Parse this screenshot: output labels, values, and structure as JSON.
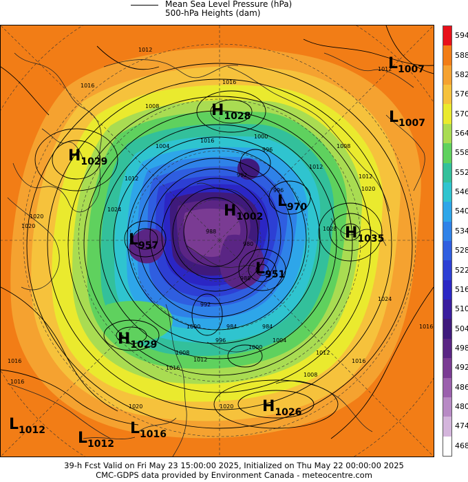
{
  "legend": {
    "line1": "Mean Sea Level Pressure (hPa)",
    "line2": "500-hPa Heights (dam)"
  },
  "colorbar": {
    "levels": [
      "594",
      "588",
      "582",
      "576",
      "570",
      "564",
      "558",
      "552",
      "546",
      "540",
      "534",
      "528",
      "522",
      "516",
      "510",
      "504",
      "498",
      "492",
      "486",
      "480",
      "474",
      "468"
    ],
    "colors": [
      "#e8101a",
      "#f27d16",
      "#f5a230",
      "#f6c23c",
      "#eaea2e",
      "#a9dc52",
      "#5fd15e",
      "#33c09b",
      "#2fc4cf",
      "#2ea6e9",
      "#2f82e8",
      "#2f5ee0",
      "#2d3fd4",
      "#2b26c4",
      "#3a1d9e",
      "#3f1a7c",
      "#5a2584",
      "#7a3b93",
      "#9b60ad",
      "#b88ac5",
      "#d4b5dc",
      "#ffffff"
    ]
  },
  "pressure_centers": [
    {
      "type": "L",
      "value": "1007",
      "name": "low-1007-top-right"
    },
    {
      "type": "H",
      "value": "1028",
      "name": "high-1028"
    },
    {
      "type": "L",
      "value": "1007",
      "name": "low-1007-right"
    },
    {
      "type": "H",
      "value": "1029",
      "name": "high-1029-left"
    },
    {
      "type": "L",
      "value": "970",
      "name": "low-970"
    },
    {
      "type": "H",
      "value": "1002",
      "name": "high-1002"
    },
    {
      "type": "H",
      "value": "1035",
      "name": "high-1035"
    },
    {
      "type": "L",
      "value": "957",
      "name": "low-957"
    },
    {
      "type": "L",
      "value": "951",
      "name": "low-951"
    },
    {
      "type": "H",
      "value": "1029",
      "name": "high-1029-bottom"
    },
    {
      "type": "H",
      "value": "1026",
      "name": "high-1026"
    },
    {
      "type": "L",
      "value": "1012",
      "name": "low-1012-left"
    },
    {
      "type": "L",
      "value": "1012",
      "name": "low-1012-center"
    },
    {
      "type": "L",
      "value": "1016",
      "name": "low-1016"
    }
  ],
  "isobar_labels": [
    "1012",
    "1016",
    "1020",
    "1016",
    "1008",
    "1004",
    "1012",
    "1016",
    "1016",
    "1020",
    "1024",
    "1012",
    "1008",
    "1000",
    "996",
    "1012",
    "1020",
    "1028",
    "1024",
    "1016",
    "1016",
    "1012",
    "1008",
    "1004",
    "1000",
    "996",
    "992",
    "1000",
    "1008",
    "1012",
    "1020",
    "1016",
    "996",
    "992",
    "988",
    "984",
    "980",
    "1012",
    "1016",
    "1020",
    "984",
    "988"
  ],
  "footer": {
    "line1": "39-h Fcst Valid on Fri May 23 15:00:00 2025, Initialized on Thu May 22 00:00:00 2025",
    "line2": "CMC-GDPS data provided by Environment Canada - meteocentre.com"
  }
}
